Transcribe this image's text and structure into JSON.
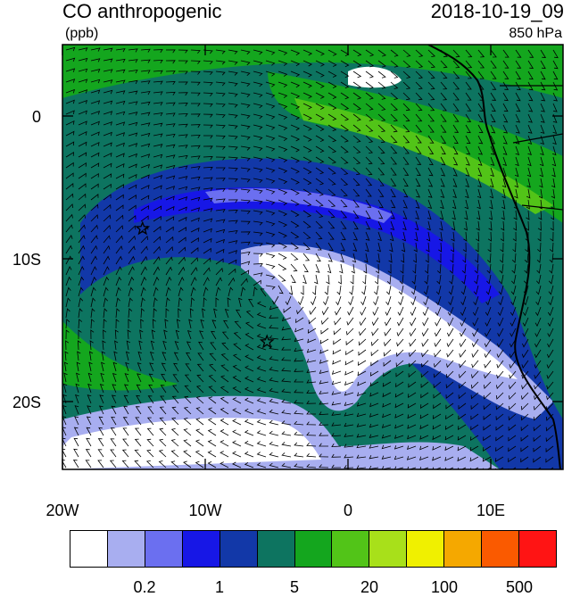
{
  "header": {
    "title": "CO anthropogenic",
    "units": "(ppb)",
    "datetime": "2018-10-19_09",
    "level": "850 hPa"
  },
  "map": {
    "lat_labels": [
      "0",
      "10S",
      "20S"
    ],
    "lon_labels": [
      "20W",
      "10W",
      "0",
      "10E"
    ],
    "extent": {
      "lon": [
        -20,
        15
      ],
      "lat": [
        -25,
        5
      ]
    },
    "markers": [
      {
        "name": "star",
        "lon": -14.4,
        "lat": -8.0
      },
      {
        "name": "star",
        "lon": -5.7,
        "lat": -16.0
      }
    ]
  },
  "colorbar": {
    "colors": [
      "#ffffff",
      "#a8aef0",
      "#6b6ff0",
      "#1717e6",
      "#1238a8",
      "#0d7460",
      "#14a61e",
      "#52c418",
      "#a8e01a",
      "#f0f000",
      "#f5a800",
      "#fa5a00",
      "#ff1414"
    ],
    "labels": [
      "0.2",
      "1",
      "5",
      "20",
      "100",
      "500"
    ]
  }
}
